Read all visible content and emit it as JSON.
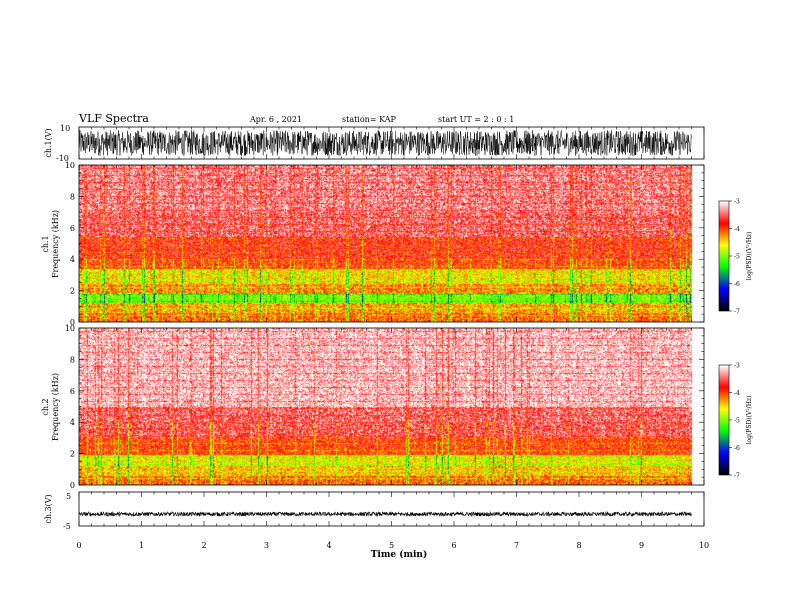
{
  "header": {
    "title": "VLF Spectra",
    "date": "Apr. 6 , 2021",
    "station": "station= KAP",
    "start": "start UT =  2 : 0 : 1"
  },
  "chart_data": [
    {
      "type": "line",
      "name": "ch1-waveform",
      "ylabel": "ch.1(V)",
      "ylim": [
        -10,
        10
      ],
      "y_ticks": [
        "10",
        "-10"
      ],
      "xlim": [
        0,
        10
      ],
      "data_end_min": 9.8,
      "amplitude_range_v": [
        -8,
        8
      ]
    },
    {
      "type": "heatmap",
      "name": "ch1-spectrogram",
      "channel_label": "ch.1",
      "ylabel": "Frequency (kHz)",
      "ylim": [
        0,
        10
      ],
      "y_ticks": [
        "0",
        "2",
        "4",
        "6",
        "8",
        "10"
      ],
      "xlim": [
        0,
        10
      ],
      "data_end_min": 9.8,
      "bands_khz": [
        {
          "from": 0.0,
          "to": 0.6,
          "level": -4.0
        },
        {
          "from": 0.6,
          "to": 1.2,
          "level": -4.2
        },
        {
          "from": 1.2,
          "to": 1.8,
          "level": -4.9
        },
        {
          "from": 1.8,
          "to": 2.4,
          "level": -4.1
        },
        {
          "from": 2.4,
          "to": 3.4,
          "level": -4.4
        },
        {
          "from": 3.4,
          "to": 4.1,
          "level": -3.8
        },
        {
          "from": 4.1,
          "to": 5.4,
          "level": -3.7
        },
        {
          "from": 5.4,
          "to": 7.0,
          "level": -3.4
        },
        {
          "from": 7.0,
          "to": 10.0,
          "level": -3.3
        }
      ],
      "colorbar": {
        "label": "log(PSD)(V²/Hz)",
        "range": [
          -7,
          -3
        ],
        "ticks": [
          "-3",
          "-4",
          "-5",
          "-6",
          "-7"
        ]
      }
    },
    {
      "type": "heatmap",
      "name": "ch2-spectrogram",
      "channel_label": "ch.2",
      "ylabel": "Frequency (kHz)",
      "ylim": [
        0,
        10
      ],
      "y_ticks": [
        "0",
        "2",
        "4",
        "6",
        "8",
        "10"
      ],
      "xlim": [
        0,
        10
      ],
      "data_end_min": 9.8,
      "bands_khz": [
        {
          "from": 0.0,
          "to": 0.6,
          "level": -4.0
        },
        {
          "from": 0.6,
          "to": 1.2,
          "level": -4.3
        },
        {
          "from": 1.2,
          "to": 1.9,
          "level": -4.5
        },
        {
          "from": 1.9,
          "to": 3.0,
          "level": -3.8
        },
        {
          "from": 3.0,
          "to": 5.0,
          "level": -3.4
        },
        {
          "from": 5.0,
          "to": 10.0,
          "level": -3.1
        }
      ],
      "colorbar": {
        "label": "log(PSD)(V²/Hz)",
        "range": [
          -7,
          -3
        ],
        "ticks": [
          "-3",
          "-4",
          "-5",
          "-6",
          "-7"
        ]
      }
    },
    {
      "type": "line",
      "name": "ch3-waveform",
      "ylabel": "ch.3(V)",
      "ylim": [
        -5,
        5
      ],
      "y_ticks": [
        "5",
        "-5"
      ],
      "xlim": [
        0,
        10
      ],
      "data_end_min": 9.8,
      "amplitude_range_v": [
        -0.6,
        0.6
      ],
      "offset_v": -1.5,
      "xlabel": "Time (min)",
      "x_ticks": [
        "0",
        "1",
        "2",
        "3",
        "4",
        "5",
        "6",
        "7",
        "8",
        "9",
        "10"
      ]
    }
  ],
  "colors": {
    "colormap": [
      "#000000",
      "#0000ff",
      "#00ff00",
      "#ffff00",
      "#ff0000",
      "#ffffff"
    ]
  }
}
